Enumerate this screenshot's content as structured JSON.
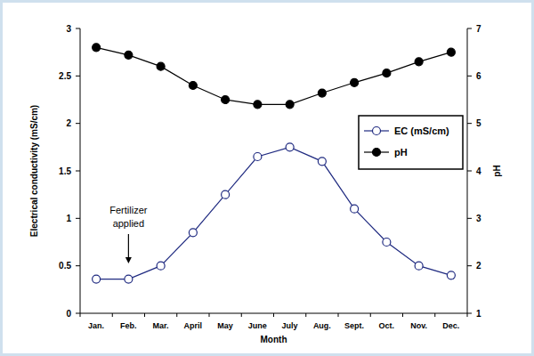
{
  "chart_data": {
    "type": "line",
    "x_label": "Month",
    "y_label": "Electrical conductivity (mS/cm)",
    "y2_label": "pH",
    "categories": [
      "Jan.",
      "Feb.",
      "Mar.",
      "April",
      "May",
      "June",
      "July",
      "Aug.",
      "Sept.",
      "Oct.",
      "Nov.",
      "Dec."
    ],
    "series": [
      {
        "name": "EC (mS/cm)",
        "color": "#1f2a80",
        "marker": "open-circle",
        "line_style": "solid",
        "values": [
          0.36,
          0.36,
          0.5,
          0.85,
          1.25,
          1.65,
          1.75,
          1.6,
          1.1,
          0.75,
          0.5,
          0.4
        ]
      },
      {
        "name": "pH",
        "color": "#000000",
        "marker": "filled-circle",
        "line_style": "solid",
        "axis": "y2",
        "values": [
          6.6,
          6.44,
          6.2,
          5.8,
          5.5,
          5.4,
          5.4,
          5.64,
          5.86,
          6.06,
          6.3,
          6.5
        ]
      }
    ],
    "ylim": [
      0,
      3
    ],
    "yticks": [
      0,
      0.5,
      1,
      1.5,
      2,
      2.5,
      3
    ],
    "y2lim": [
      1,
      7
    ],
    "y2ticks": [
      1,
      2,
      3,
      4,
      5,
      6,
      7
    ],
    "legend": "right",
    "grid": false,
    "annotations": [
      {
        "text": "Fertilizer applied",
        "x": "Feb."
      }
    ]
  }
}
